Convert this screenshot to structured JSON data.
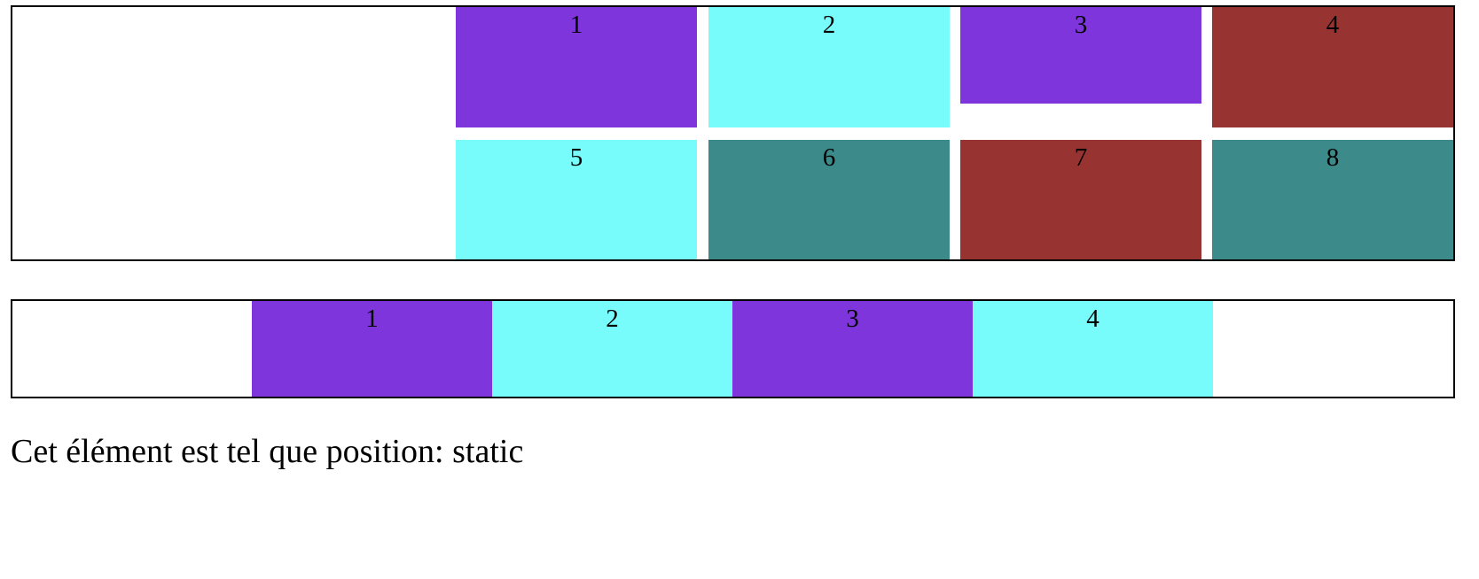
{
  "grid_box": {
    "cells": [
      {
        "label": "1",
        "color": "#7f35dc"
      },
      {
        "label": "2",
        "color": "#78fbfb"
      },
      {
        "label": "3",
        "color": "#7f35dc"
      },
      {
        "label": "4",
        "color": "#973431"
      },
      {
        "label": "5",
        "color": "#78fbfb"
      },
      {
        "label": "6",
        "color": "#3d8a8a"
      },
      {
        "label": "7",
        "color": "#973431"
      },
      {
        "label": "8",
        "color": "#3d8a8a"
      }
    ]
  },
  "row_box": {
    "cells": [
      {
        "label": "1",
        "color": "#7f35dc"
      },
      {
        "label": "2",
        "color": "#78fbfb"
      },
      {
        "label": "3",
        "color": "#7f35dc"
      },
      {
        "label": "4",
        "color": "#78fbfb"
      }
    ]
  },
  "caption": "Cet élément est tel que position: static"
}
